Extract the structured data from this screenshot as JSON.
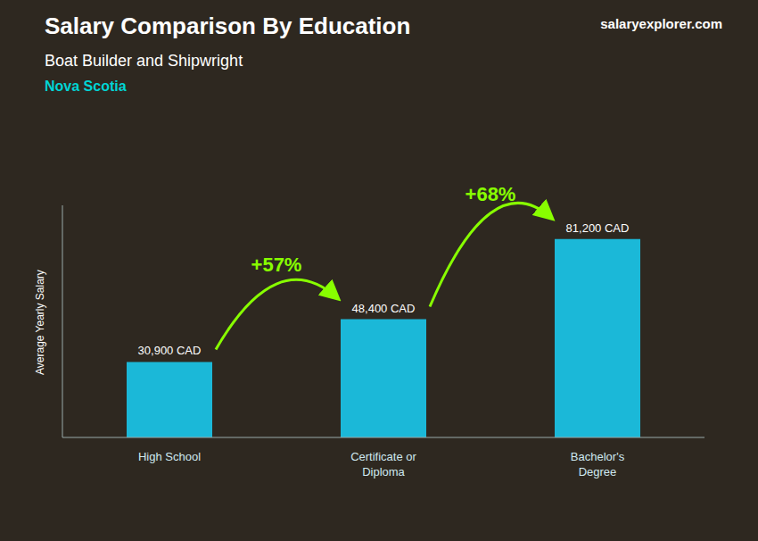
{
  "chart_data": {
    "type": "bar",
    "title": "Salary Comparison By Education",
    "subtitle": [
      "Boat Builder and Shipwright",
      "Nova Scotia"
    ],
    "ylabel": "Average Yearly Salary",
    "categories": [
      "High School",
      "Certificate or\nDiploma",
      "Bachelor's\nDegree"
    ],
    "values": [
      30900,
      48400,
      81200
    ],
    "value_labels": [
      "30,900 CAD",
      "48,400 CAD",
      "81,200 CAD"
    ],
    "data_labels": true,
    "color": "#1BB8D8",
    "ylim": [
      0,
      95000
    ],
    "grid": false,
    "tick_labels": "x",
    "annotations": [
      {
        "text": "+57%",
        "color": "#88FF00"
      },
      {
        "text": "+68%",
        "color": "#88FF00"
      },
      {
        "text": "salaryexplorer.com"
      }
    ]
  }
}
